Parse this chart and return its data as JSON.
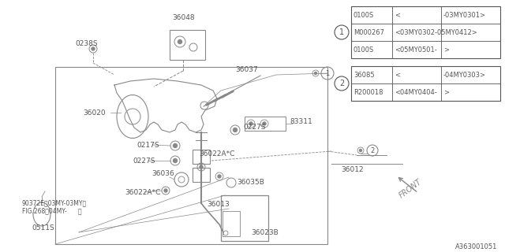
{
  "bg_color": "#ffffff",
  "line_color": "#888888",
  "dark_color": "#555555",
  "diagram_id": "A363001051",
  "table1_rows": [
    [
      "0100S",
      "<",
      "-03MY0301>"
    ],
    [
      "M000267",
      "<03MY0302-05MY0412>"
    ],
    [
      "0100S",
      "<05MY0501-",
      ">"
    ]
  ],
  "table2_rows": [
    [
      "36085",
      "<",
      "-04MY0303>"
    ],
    [
      "R200018",
      "<04MY0404-",
      ">"
    ]
  ],
  "figsize": [
    6.4,
    3.2
  ],
  "dpi": 100
}
